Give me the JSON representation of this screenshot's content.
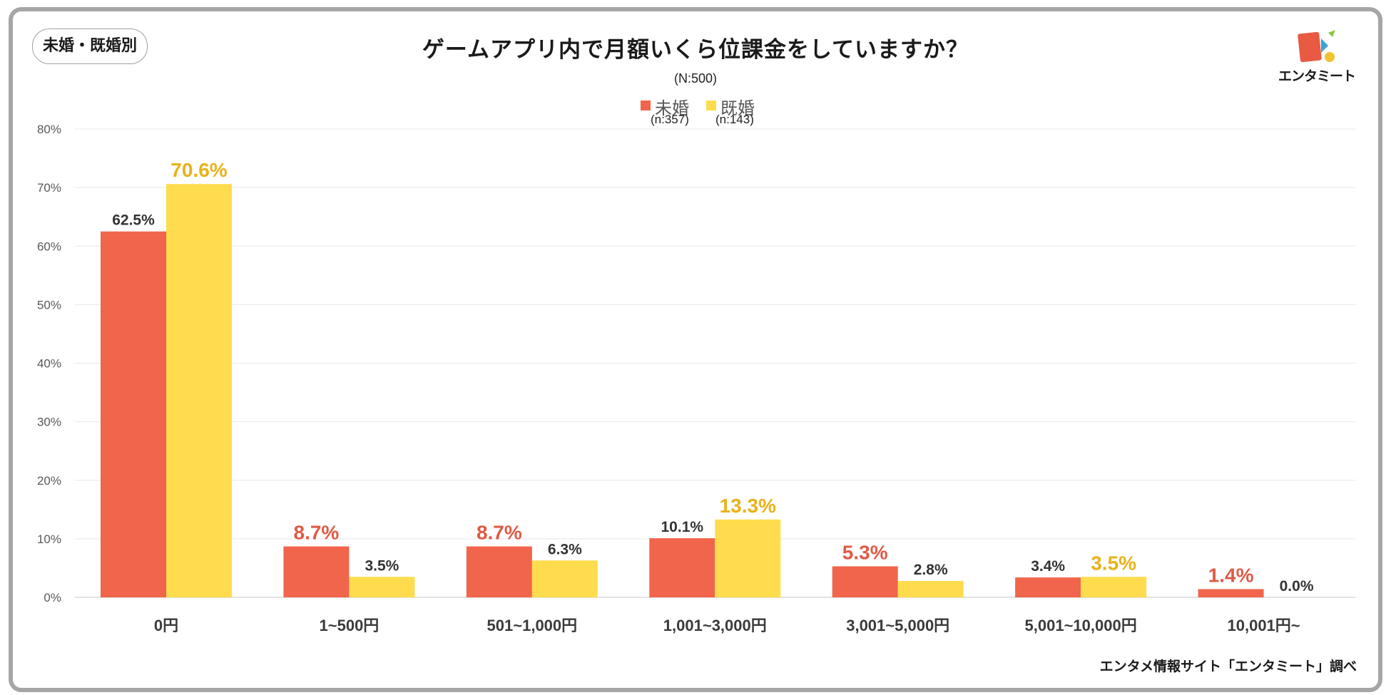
{
  "badge": "未婚・既婚別",
  "credit": "エンタメ情報サイト「エンタミート」調べ",
  "logo": {
    "text": "エンタミート",
    "colors": [
      "#e85a42",
      "#3ba3d9",
      "#f2c230",
      "#8cc63f"
    ]
  },
  "legend": [
    {
      "name": "未婚",
      "n": "(n:357)",
      "color": "#f0654b"
    },
    {
      "name": "既婚",
      "n": "(n:143)",
      "color": "#ffdc4d"
    }
  ],
  "colors": {
    "highlight_unmarried": "#e05a45",
    "highlight_married": "#e8b21a",
    "grid": "#e8e8e8",
    "axis": "#d9d9d9"
  },
  "chart_data": {
    "type": "bar",
    "title": "ゲームアプリ内で月額いくら位課金をしていますか？",
    "subtitle": "(N:500)",
    "categories": [
      "0円",
      "1~500円",
      "501~1,000円",
      "1,001~3,000円",
      "3,001~5,000円",
      "5,001~10,000円",
      "10,001円~"
    ],
    "series": [
      {
        "name": "未婚",
        "values": [
          62.5,
          8.7,
          8.7,
          10.1,
          5.3,
          3.4,
          1.4
        ],
        "labels": [
          "62.5%",
          "8.7%",
          "8.7%",
          "10.1%",
          "5.3%",
          "3.4%",
          "1.4%"
        ],
        "highlight": [
          false,
          true,
          true,
          false,
          true,
          false,
          true
        ]
      },
      {
        "name": "既婚",
        "values": [
          70.6,
          3.5,
          6.3,
          13.3,
          2.8,
          3.5,
          0.0
        ],
        "labels": [
          "70.6%",
          "3.5%",
          "6.3%",
          "13.3%",
          "2.8%",
          "3.5%",
          "0.0%"
        ],
        "highlight": [
          true,
          false,
          false,
          true,
          false,
          true,
          false
        ]
      }
    ],
    "yticks": [
      "0%",
      "10%",
      "20%",
      "30%",
      "40%",
      "50%",
      "60%",
      "70%",
      "80%"
    ],
    "ylim": [
      0,
      80
    ],
    "xlabel": "",
    "ylabel": "",
    "grid": true,
    "legend_position": "top-center"
  }
}
